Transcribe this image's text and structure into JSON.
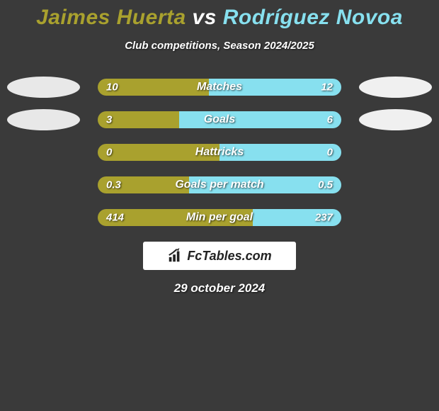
{
  "title": {
    "player1": "Jaimes Huerta",
    "vs": "vs",
    "player2": "Rodríguez Novoa"
  },
  "subtitle": "Club competitions, Season 2024/2025",
  "colors": {
    "player1": "#a9a12e",
    "player2": "#87e0ef",
    "bg": "#3a3a3a",
    "text": "#ffffff"
  },
  "stats": [
    {
      "label": "Matches",
      "left_val": "10",
      "right_val": "12",
      "left_pct": 45.5,
      "show_ovals": true
    },
    {
      "label": "Goals",
      "left_val": "3",
      "right_val": "6",
      "left_pct": 33.3,
      "show_ovals": true
    },
    {
      "label": "Hattricks",
      "left_val": "0",
      "right_val": "0",
      "left_pct": 50.0,
      "show_ovals": false
    },
    {
      "label": "Goals per match",
      "left_val": "0.3",
      "right_val": "0.5",
      "left_pct": 37.5,
      "show_ovals": false
    },
    {
      "label": "Min per goal",
      "left_val": "414",
      "right_val": "237",
      "left_pct": 63.6,
      "show_ovals": false
    }
  ],
  "logo": {
    "text": "FcTables.com"
  },
  "date": "29 october 2024"
}
